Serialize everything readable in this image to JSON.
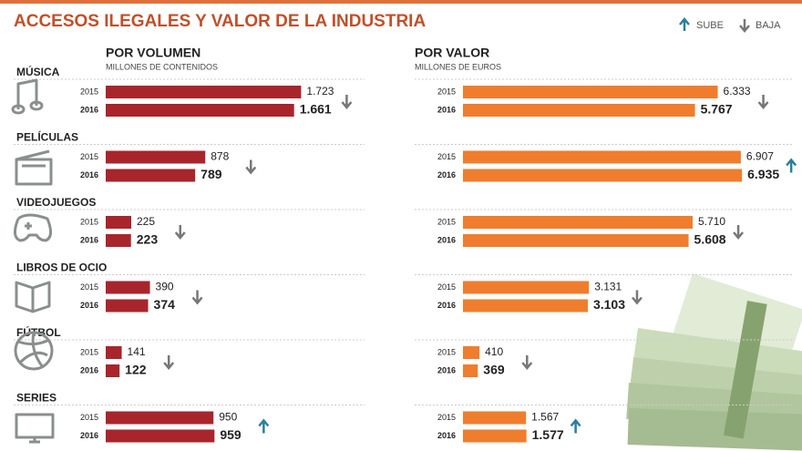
{
  "title": "ACCESOS ILEGALES Y VALOR DE LA INDUSTRIA",
  "legend": {
    "up": "SUBE",
    "down": "BAJA"
  },
  "categories": [
    "MÚSICA",
    "PELÍCULAS",
    "VIDEOJUEGOS",
    "LIBROS DE OCIO",
    "FÚTBOL",
    "SERIES"
  ],
  "chart_data": [
    {
      "type": "bar",
      "title": "POR VOLUMEN",
      "subtitle": "MILLONES DE CONTENIDOS",
      "xlim": [
        0,
        1800
      ],
      "series": [
        {
          "name": "2015",
          "color": "#a8252c",
          "values": [
            1723,
            878,
            225,
            390,
            141,
            950
          ],
          "value_labels": [
            "1.723",
            "878",
            "225",
            "390",
            "141",
            "950"
          ]
        },
        {
          "name": "2016",
          "color": "#a8252c",
          "values": [
            1661,
            789,
            223,
            374,
            122,
            959
          ],
          "value_labels": [
            "1.661",
            "789",
            "223",
            "374",
            "122",
            "959"
          ]
        }
      ]
    },
    {
      "type": "bar",
      "title": "POR VALOR",
      "subtitle": "MILLONES DE EUROS",
      "xlim": [
        0,
        7000
      ],
      "series": [
        {
          "name": "2015",
          "color": "#ef7d2d",
          "values": [
            6333,
            6907,
            5710,
            3131,
            410,
            1567
          ],
          "value_labels": [
            "6.333",
            "6.907",
            "5.710",
            "3.131",
            "410",
            "1.567"
          ]
        },
        {
          "name": "2016",
          "color": "#ef7d2d",
          "values": [
            5767,
            6935,
            5608,
            3103,
            369,
            1577
          ],
          "value_labels": [
            "5.767",
            "6.935",
            "5.608",
            "3.103",
            "369",
            "1.577"
          ]
        }
      ]
    }
  ]
}
